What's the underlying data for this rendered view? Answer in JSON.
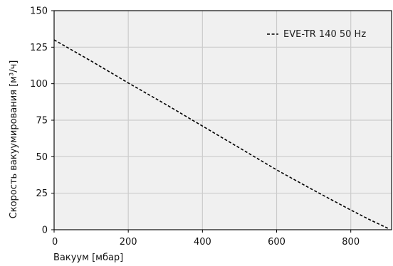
{
  "chart_data": {
    "type": "line",
    "title": "",
    "xlabel": "Вакуум [мбар]",
    "ylabel": "Скорость вакуумирования [м³/ч]",
    "xlim": [
      0,
      910
    ],
    "ylim": [
      0,
      150
    ],
    "x_ticks": [
      0,
      200,
      400,
      600,
      800
    ],
    "y_ticks": [
      0,
      25,
      50,
      75,
      100,
      125,
      150
    ],
    "grid": true,
    "legend": "top-right",
    "series": [
      {
        "name": "EVE-TR 140 50 Hz",
        "color": "#000000",
        "line_style": "dashed",
        "x": [
          0,
          100,
          200,
          300,
          400,
          500,
          600,
          700,
          800,
          850,
          900
        ],
        "y": [
          130,
          115.5,
          100.5,
          86,
          71,
          56,
          41,
          27,
          13.5,
          7,
          1
        ]
      }
    ]
  }
}
